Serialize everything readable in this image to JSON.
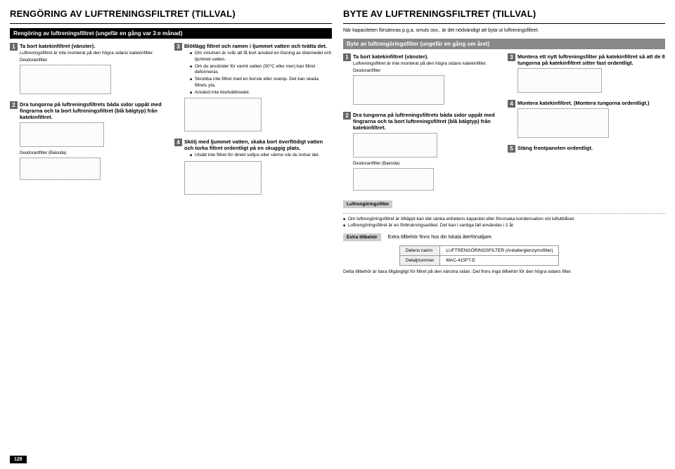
{
  "left": {
    "title": "RENGÖRING AV LUFTRENINGSFILTRET (TILLVAL)",
    "bar": "Rengöring av luftreningsfiltret (ungefär en gång var 3:e månad)",
    "s1": {
      "n": "1",
      "t": "Ta bort katekinfiltret (vänster).",
      "sub": "Luftreningsfiltret är inte monterat på den högra sidans katekinfilter.",
      "label": "Deodorantfilter"
    },
    "s2": {
      "n": "2",
      "t": "Dra tungorna på luftreningsfiltrets båda sidor uppåt med fingrarna och ta bort luftreningsfiltret (blå bälgtyp) från katekinfiltret.",
      "label": "Deodorantfilter (Baksida)"
    },
    "s3": {
      "n": "3",
      "t": "Blötlägg filtret och ramen i ljummet vatten och tvätta det.",
      "b": [
        "Om smutsen är svår att få bort använd en lösning av diskmedel och ljummet vatten.",
        "Om du använder för varmt vatten (50°C eller mer) kan filtret deformeras.",
        "Skrubba inte filtret med en borste eller svamp. Det kan skada filtrets yta.",
        "Använd inte klortvättmedel."
      ]
    },
    "s4": {
      "n": "4",
      "t": "Skölj med ljummet vatten, skaka bort överflödigt vatten och torka filtret ordentligt på en skuggig plats.",
      "b": [
        "Utsätt inte filtret för direkt solljus eller värme när du torkar det."
      ]
    }
  },
  "right": {
    "title": "BYTE AV LUFTRENINGSFILTRET (TILLVAL)",
    "intro": "När kapaciteten försämras p.g.a. smuts osv., är det nödvändigt att byta ut luftreningsfiltret.",
    "bar": "Byte av luftrengöringsfilter (ungefär en gång om året)",
    "s1": {
      "n": "1",
      "t": "Ta bort katekinfiltret (vänster).",
      "sub": "Luftreningsfiltret är inte monterat på den högra sidans katekinfilter.",
      "label": "Deodorantfilter"
    },
    "s2": {
      "n": "2",
      "t": "Dra tungorna på luftreningsfiltrets båda sidor uppåt med fingrarna och ta bort luftreningsfiltret (blå bälgtyp) från katekinfiltret.",
      "label": "Deodorantfilter (Baksida)"
    },
    "s3": {
      "n": "3",
      "t": "Montera ett nytt luftreningsfilter på katekinfiltret så att de 8 tungorna på katekinfiltret sitter fast ordentligt."
    },
    "s4": {
      "n": "4",
      "t": "Montera katekinfiltret. (Montera tungorna ordentligt.)"
    },
    "s5": {
      "n": "5",
      "t": "Stäng frontpanelen ordentligt."
    },
    "filterlabel": "Luftrengöringsfilter",
    "notes": [
      "Om luftrengöringsfiltret är tilltäppt kan det sänka enhetens kapacitet eller förorsaka kondensation vid luftutblåset.",
      "Luftrengöringsfiltret är en förbrukningsartikel. Det kan i vanliga fall användas i 1 år."
    ],
    "extratag": "Extra tillbehör",
    "extratxt": "Extra tillbehör finns hos din lokala återförsäljare.",
    "table": {
      "h1": "Delens namn",
      "h2": "Detaljnummer",
      "v1": "LUFTRENGÖRINGSFILTER (Antiallergienzymsfilter)",
      "v2": "MAC-415FT-E"
    },
    "tnote": "Detta tillbehör är bara tillgängligt för filtret på den vänstra sidan. Det finns inga tillbehör för den högra sidans filter."
  },
  "page": "128"
}
